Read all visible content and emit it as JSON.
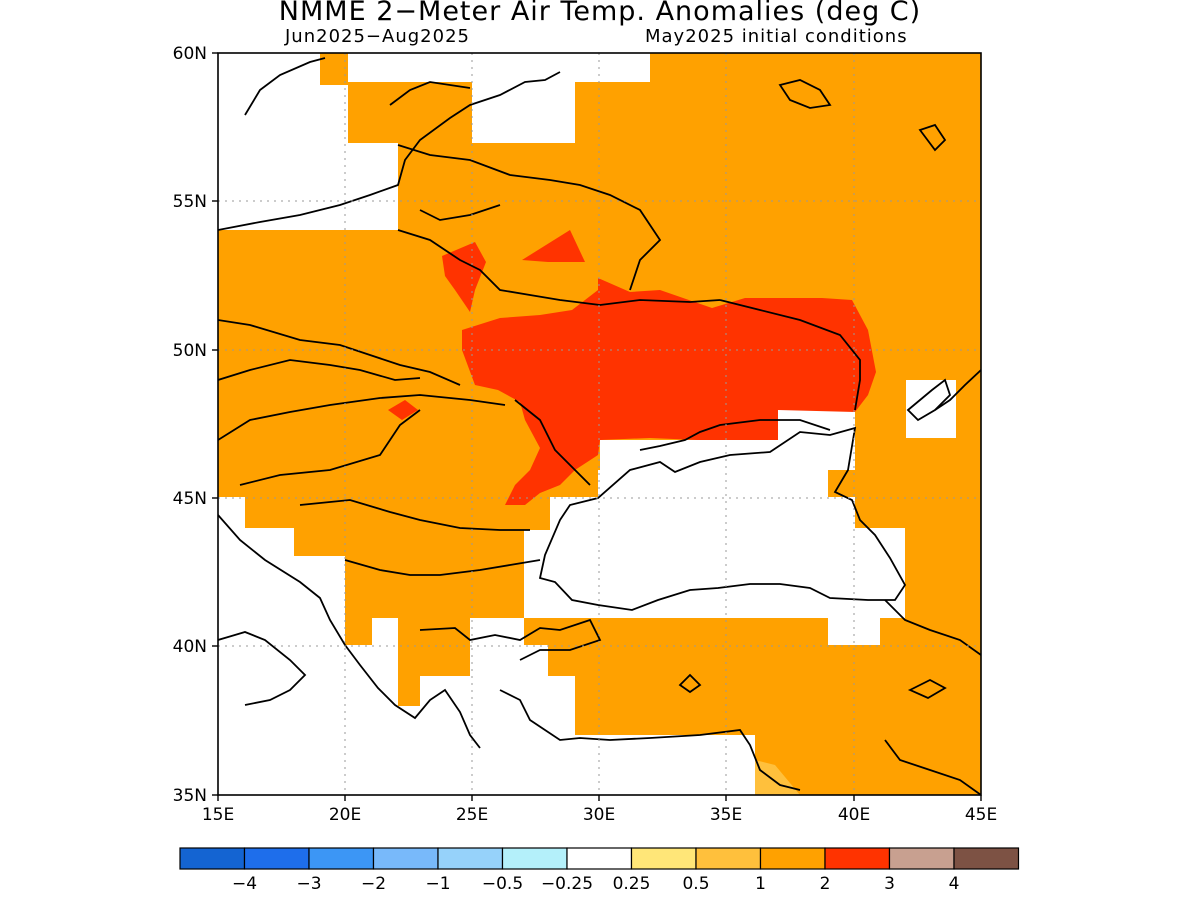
{
  "title": "NMME 2−Meter Air Temp. Anomalies (deg C)",
  "subtitle_left": "Jun2025−Aug2025",
  "subtitle_right": "May2025 initial conditions",
  "map": {
    "lon_range": [
      15,
      45
    ],
    "lat_range": [
      35,
      60
    ],
    "lon_ticks": [
      "15E",
      "20E",
      "25E",
      "30E",
      "35E",
      "40E",
      "45E"
    ],
    "lat_ticks": [
      "60N",
      "55N",
      "50N",
      "45N",
      "40N",
      "35N"
    ],
    "grid": "dotted",
    "category_colors": {
      "white": "#ffffff",
      "0.5-1": "#ffc03c",
      "1-2": "#ffa100",
      "2-3": "#ff3300"
    }
  },
  "legend": {
    "colors": [
      "#1464d2",
      "#1e6eeb",
      "#3c96f5",
      "#78b9fa",
      "#96d2fa",
      "#b4f0fa",
      "#ffffff",
      "#ffe678",
      "#ffc03c",
      "#ffa100",
      "#ff3300",
      "#c8a090",
      "#7d5244"
    ],
    "labels": [
      "−4",
      "−3",
      "−2",
      "−1",
      "−0.5",
      "−0.25",
      "0.25",
      "0.5",
      "1",
      "2",
      "3",
      "4"
    ]
  }
}
